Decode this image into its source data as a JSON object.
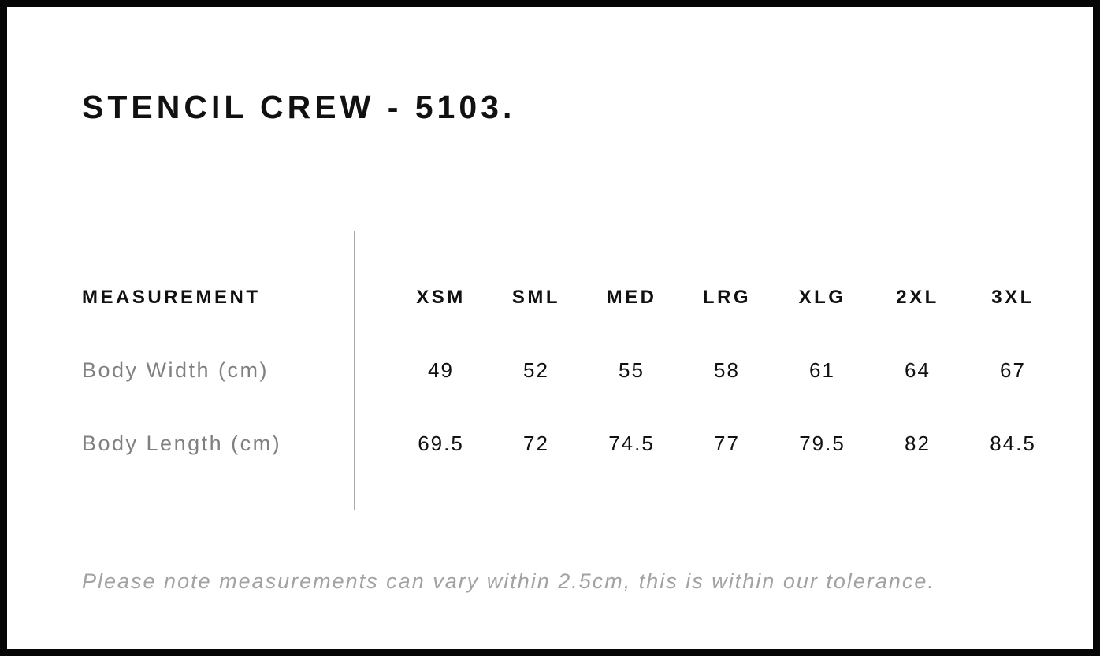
{
  "page": {
    "title": "STENCIL CREW - 5103.",
    "note": "Please note measurements can vary within 2.5cm, this is within our tolerance."
  },
  "size_chart": {
    "measurement_header": "MEASUREMENT",
    "sizes": [
      "XSM",
      "SML",
      "MED",
      "LRG",
      "XLG",
      "2XL",
      "3XL"
    ],
    "rows": [
      {
        "label": "Body Width (cm)",
        "values": [
          "49",
          "52",
          "55",
          "58",
          "61",
          "64",
          "67"
        ]
      },
      {
        "label": "Body Length (cm)",
        "values": [
          "69.5",
          "72",
          "74.5",
          "77",
          "79.5",
          "82",
          "84.5"
        ]
      }
    ]
  },
  "chart_data": {
    "type": "table",
    "title": "STENCIL CREW - 5103.",
    "columns": [
      "MEASUREMENT",
      "XSM",
      "SML",
      "MED",
      "LRG",
      "XLG",
      "2XL",
      "3XL"
    ],
    "rows": [
      [
        "Body Width (cm)",
        49,
        52,
        55,
        58,
        61,
        64,
        67
      ],
      [
        "Body Length (cm)",
        69.5,
        72,
        74.5,
        77,
        79.5,
        82,
        84.5
      ]
    ],
    "footnote": "Please note measurements can vary within 2.5cm, this is within our tolerance."
  },
  "colors": {
    "border": "#060606",
    "heading_text": "#111111",
    "row_label_text": "#808080",
    "note_text": "#a2a2a2",
    "divider": "#ababab",
    "background": "#ffffff"
  }
}
